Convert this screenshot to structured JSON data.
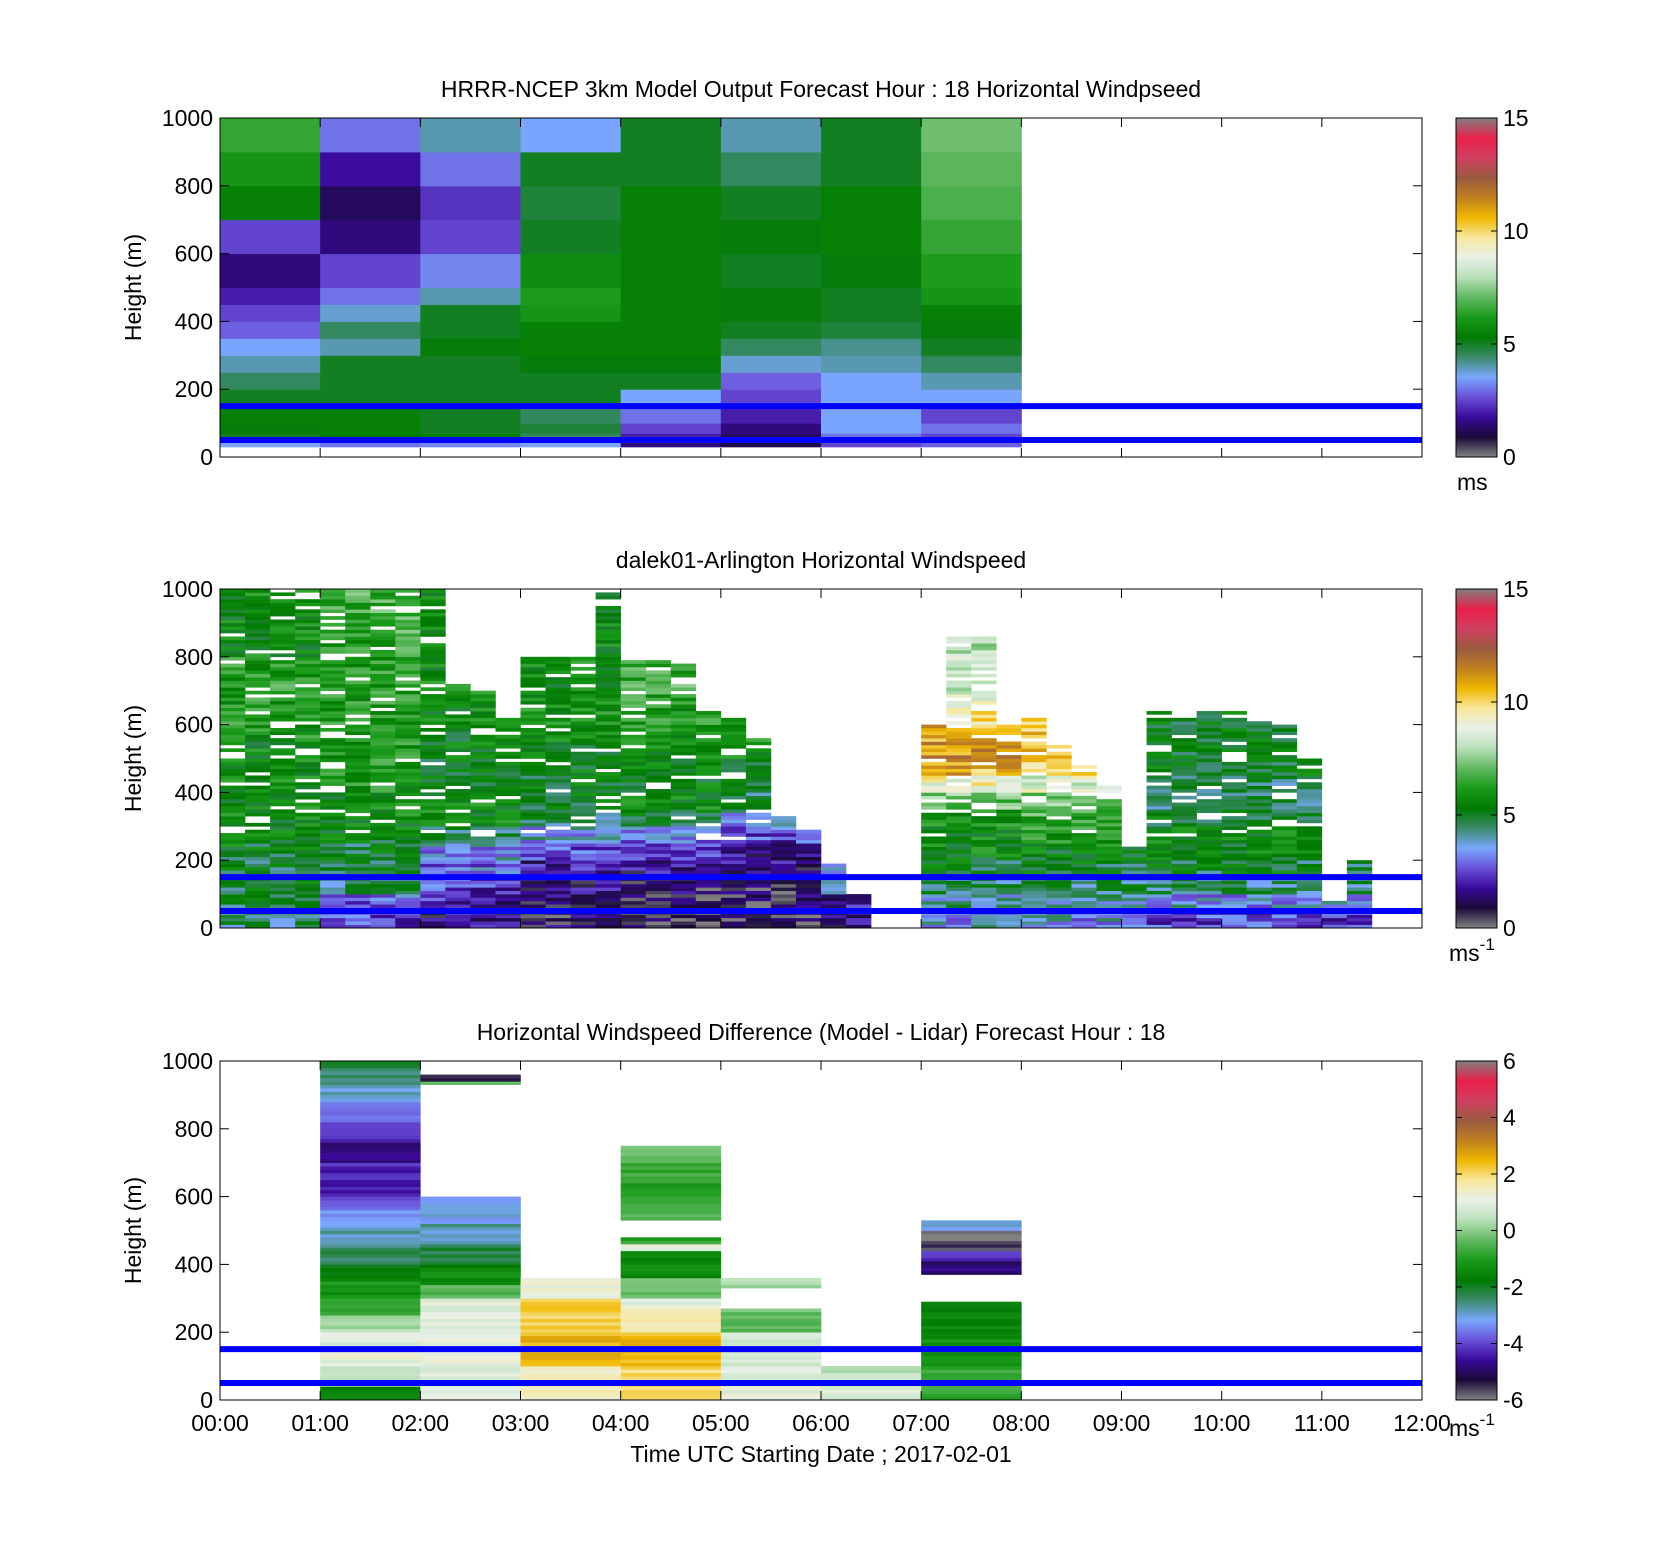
{
  "figure": {
    "xlabel": "Time UTC  Starting Date ; 2017-02-01",
    "x_tick_labels": [
      "00:00",
      "01:00",
      "02:00",
      "03:00",
      "04:00",
      "05:00",
      "06:00",
      "07:00",
      "08:00",
      "09:00",
      "10:00",
      "11:00",
      "12:00"
    ],
    "reference_lines_m": [
      50,
      150
    ],
    "reference_line_color": "#0000ff"
  },
  "colors": {
    "colormap": [
      "#808080",
      "#1a0a3a",
      "#3a0a9a",
      "#6a50d8",
      "#7aa8ff",
      "#3a8a6a",
      "#007a00",
      "#1a9a1a",
      "#60b860",
      "#b8e0b8",
      "#e8f0e8",
      "#f8e8a0",
      "#f0b800",
      "#c08020",
      "#9a5a40",
      "#d04060",
      "#e8204a",
      "#808080"
    ]
  },
  "chart_data": [
    {
      "type": "heatmap",
      "title": "HRRR-NCEP 3km Model Output   Forecast Hour : 18 Horizontal Windpseed",
      "ylabel": "Height (m)",
      "ylim": [
        0,
        1000
      ],
      "yticks": [
        "0",
        "200",
        "400",
        "600",
        "800",
        "1000"
      ],
      "xlim_hours": [
        0,
        12
      ],
      "colorbar": {
        "ticks": [
          "0",
          "5",
          "10",
          "15"
        ],
        "range": [
          0,
          15
        ],
        "unit": "ms",
        "unit_sup": ""
      },
      "columns_hours": [
        0,
        1,
        2,
        3,
        4,
        5,
        6,
        7
      ],
      "column_width_hours": 1,
      "rows_m": [
        [
          30,
          50
        ],
        [
          50,
          70
        ],
        [
          70,
          100
        ],
        [
          100,
          150
        ],
        [
          150,
          200
        ],
        [
          200,
          250
        ],
        [
          250,
          300
        ],
        [
          300,
          350
        ],
        [
          350,
          400
        ],
        [
          400,
          450
        ],
        [
          450,
          500
        ],
        [
          500,
          600
        ],
        [
          600,
          700
        ],
        [
          700,
          800
        ],
        [
          800,
          900
        ],
        [
          900,
          1000
        ]
      ],
      "values": [
        [
          3.5,
          3.0,
          3.2,
          3.5,
          1.5,
          1.0,
          2.5,
          2.8
        ],
        [
          5.0,
          5.2,
          5.5,
          4.5,
          2.0,
          1.2,
          3.0,
          2.5
        ],
        [
          5.2,
          5.5,
          5.0,
          4.8,
          2.5,
          1.5,
          3.5,
          3.0
        ],
        [
          5.5,
          5.5,
          5.0,
          4.5,
          3.0,
          2.0,
          3.5,
          2.5
        ],
        [
          5.0,
          5.0,
          5.0,
          5.0,
          3.5,
          2.5,
          3.5,
          3.5
        ],
        [
          4.5,
          5.0,
          5.0,
          5.0,
          5.0,
          2.8,
          3.5,
          4.0
        ],
        [
          4.0,
          5.0,
          5.0,
          5.2,
          5.2,
          3.8,
          4.0,
          4.5
        ],
        [
          3.5,
          4.0,
          5.2,
          5.5,
          5.5,
          4.5,
          4.2,
          5.0
        ],
        [
          2.8,
          4.5,
          5.0,
          5.5,
          5.5,
          5.0,
          4.8,
          5.2
        ],
        [
          2.5,
          3.8,
          5.0,
          6.0,
          5.5,
          5.2,
          5.0,
          5.5
        ],
        [
          2.0,
          3.0,
          4.0,
          6.2,
          5.5,
          5.2,
          5.0,
          6.0
        ],
        [
          1.5,
          2.5,
          3.2,
          5.8,
          5.5,
          5.0,
          5.2,
          6.2
        ],
        [
          2.5,
          1.5,
          2.5,
          5.0,
          5.5,
          5.2,
          5.5,
          6.5
        ],
        [
          5.5,
          1.2,
          2.3,
          4.8,
          5.5,
          5.0,
          5.5,
          6.8
        ],
        [
          6.0,
          1.8,
          3.0,
          5.0,
          5.0,
          4.5,
          5.0,
          7.0
        ],
        [
          6.5,
          3.0,
          4.0,
          3.5,
          5.0,
          4.0,
          5.0,
          7.2
        ]
      ]
    },
    {
      "type": "heatmap",
      "title": "dalek01-Arlington  Horizontal Windspeed",
      "ylabel": "Height (m)",
      "ylim": [
        0,
        1000
      ],
      "yticks": [
        "0",
        "200",
        "400",
        "600",
        "800",
        "1000"
      ],
      "xlim_hours": [
        0,
        12
      ],
      "colorbar": {
        "ticks": [
          "0",
          "5",
          "10",
          "15"
        ],
        "range": [
          0,
          15
        ],
        "unit": "ms",
        "unit_sup": "-1"
      },
      "bin_width_hours": 0.25,
      "bin_starts_hours": [
        0.0,
        0.25,
        0.5,
        0.75,
        1.0,
        1.25,
        1.5,
        1.75,
        2.0,
        2.25,
        2.5,
        2.75,
        3.0,
        3.25,
        3.5,
        3.75,
        4.0,
        4.25,
        4.5,
        4.75,
        5.0,
        5.25,
        5.5,
        5.75,
        6.0,
        6.25,
        6.5,
        6.75,
        7.0,
        7.25,
        7.5,
        7.75,
        8.0,
        8.25,
        8.5,
        8.75,
        9.0,
        9.25,
        9.5,
        9.75,
        10.0,
        10.25,
        10.5,
        10.75,
        11.0,
        11.25
      ],
      "max_height_m": [
        1000,
        1000,
        1000,
        1000,
        1000,
        1000,
        1000,
        1000,
        1000,
        720,
        700,
        620,
        800,
        800,
        800,
        1000,
        800,
        800,
        780,
        640,
        620,
        560,
        330,
        300,
        190,
        100,
        0,
        0,
        600,
        860,
        860,
        600,
        620,
        540,
        480,
        420,
        240,
        640,
        620,
        640,
        640,
        620,
        600,
        500,
        80,
        200
      ],
      "profile_m": [
        0,
        50,
        100,
        150,
        200,
        250,
        300,
        350,
        400,
        450,
        500,
        550,
        600,
        650,
        700,
        750,
        800,
        850,
        900,
        950,
        1000
      ],
      "profile_values": [
        [
          4.5,
          4.8,
          5.0,
          5.0,
          5.2,
          5.2,
          5.5,
          5.5,
          5.5,
          5.5,
          5.5,
          5.8,
          6.0,
          6.0,
          6.2,
          6.0,
          5.5,
          5.5,
          5.5,
          5.5,
          5.5
        ],
        [
          2.5,
          3.0,
          4.5,
          5.0,
          5.0,
          5.2,
          5.5,
          5.5,
          5.8,
          6.0,
          6.0,
          6.0,
          6.2,
          6.0,
          6.0,
          6.0,
          6.2,
          6.5,
          6.5,
          6.5,
          6.5
        ],
        [
          1.5,
          2.0,
          2.5,
          3.0,
          3.5,
          4.5,
          5.5,
          5.5,
          5.0,
          5.0,
          5.2,
          5.2,
          5.5,
          5.5,
          5.5,
          5.5,
          5.5,
          5.5,
          5.5,
          5.5,
          5.5
        ],
        [
          1.0,
          1.2,
          1.5,
          2.0,
          2.5,
          3.5,
          4.5,
          5.0,
          5.0,
          5.2,
          5.2,
          5.5,
          5.8,
          5.5,
          5.5,
          5.5,
          5.5,
          5.5,
          5.5,
          5.5,
          5.5
        ],
        [
          0.6,
          0.8,
          1.0,
          1.5,
          2.0,
          3.0,
          5.0,
          5.5,
          5.2,
          5.2,
          5.5,
          5.8,
          6.0,
          6.2,
          6.5,
          6.5,
          6.5,
          6.5,
          6.5,
          6.5,
          6.5
        ],
        [
          0.6,
          0.8,
          1.0,
          1.5,
          1.8,
          2.5,
          3.5,
          4.5,
          5.0,
          5.2,
          5.5,
          5.8,
          6.0,
          6.0,
          6.0,
          6.0,
          6.0,
          6.0,
          6.0,
          6.0,
          6.0
        ],
        [
          1.5,
          2.0,
          3.0,
          3.5,
          4.5,
          5.0,
          5.5,
          5.5,
          5.5,
          9.0,
          10.5,
          9.5,
          9.0,
          9.0,
          8.5,
          8.0,
          8.0,
          8.0,
          8.0,
          8.0,
          8.0
        ],
        [
          3.5,
          4.0,
          4.5,
          5.0,
          5.5,
          5.5,
          6.0,
          7.0,
          9.0,
          10.5,
          11.0,
          10.5,
          9.5,
          8.5,
          8.0,
          8.0,
          8.0,
          8.0,
          8.0,
          8.0,
          8.0
        ],
        [
          3.5,
          4.0,
          4.5,
          5.0,
          5.5,
          6.0,
          6.5,
          7.0,
          8.5,
          10.0,
          10.5,
          10.0,
          9.5,
          9.0,
          8.5,
          8.0,
          8.0,
          8.0,
          8.0,
          8.0,
          8.0
        ],
        [
          2.5,
          3.5,
          4.5,
          5.0,
          5.5,
          5.5,
          5.0,
          4.5,
          4.5,
          5.0,
          5.0,
          5.0,
          5.0,
          5.0,
          5.0,
          5.0,
          5.0,
          5.0,
          5.0,
          5.0,
          5.0
        ]
      ]
    },
    {
      "type": "heatmap",
      "title": "Horizontal Windspeed Difference (Model - Lidar) Forecast Hour : 18",
      "ylabel": "Height (m)",
      "ylim": [
        0,
        1000
      ],
      "yticks": [
        "0",
        "200",
        "400",
        "600",
        "800",
        "1000"
      ],
      "xlim_hours": [
        0,
        12
      ],
      "colorbar": {
        "ticks": [
          "-6",
          "-4",
          "-2",
          "0",
          "2",
          "4",
          "6"
        ],
        "range": [
          -6,
          6
        ],
        "unit": "ms",
        "unit_sup": "-1"
      },
      "columns": [
        {
          "start_hour": 1,
          "segments": [
            [
              0,
              40,
              -1.5
            ],
            [
              40,
              100,
              0.5
            ],
            [
              100,
              200,
              1.0
            ],
            [
              200,
              250,
              0.3
            ],
            [
              250,
              300,
              -0.7
            ],
            [
              300,
              350,
              -1.2
            ],
            [
              350,
              400,
              -1.8
            ],
            [
              400,
              450,
              -2.3
            ],
            [
              450,
              500,
              -2.8
            ],
            [
              500,
              560,
              -3.2
            ],
            [
              560,
              600,
              -3.8
            ],
            [
              600,
              700,
              -4.3
            ],
            [
              700,
              760,
              -4.8
            ],
            [
              760,
              820,
              -4.2
            ],
            [
              820,
              880,
              -3.5
            ],
            [
              880,
              930,
              -3.0
            ],
            [
              930,
              970,
              -2.5
            ],
            [
              970,
              1000,
              -2.2
            ]
          ]
        },
        {
          "start_hour": 2,
          "segments": [
            [
              0,
              300,
              1.0
            ],
            [
              300,
              340,
              -0.5
            ],
            [
              340,
              400,
              -1.5
            ],
            [
              400,
              460,
              -2.2
            ],
            [
              460,
              520,
              -2.8
            ],
            [
              520,
              600,
              -3.2
            ],
            [
              930,
              940,
              0.0
            ],
            [
              940,
              960,
              -5.5
            ]
          ]
        },
        {
          "start_hour": 3,
          "segments": [
            [
              0,
              100,
              1.5
            ],
            [
              100,
              200,
              2.5
            ],
            [
              200,
              300,
              2.2
            ],
            [
              300,
              360,
              1.2
            ]
          ]
        },
        {
          "start_hour": 4,
          "segments": [
            [
              0,
              100,
              2.0
            ],
            [
              100,
              200,
              2.5
            ],
            [
              200,
              280,
              1.5
            ],
            [
              280,
              300,
              1.0
            ],
            [
              300,
              360,
              -0.3
            ],
            [
              360,
              440,
              -1.5
            ],
            [
              440,
              460,
              1.0
            ],
            [
              460,
              480,
              -0.8
            ],
            [
              530,
              600,
              -0.5
            ],
            [
              600,
              660,
              -1.0
            ],
            [
              660,
              700,
              -0.7
            ],
            [
              700,
              750,
              -0.4
            ]
          ]
        },
        {
          "start_hour": 5,
          "segments": [
            [
              0,
              100,
              1.0
            ],
            [
              100,
              200,
              0.6
            ],
            [
              200,
              270,
              -0.3
            ],
            [
              330,
              360,
              0.3
            ]
          ]
        },
        {
          "start_hour": 6,
          "segments": [
            [
              0,
              50,
              1.0
            ],
            [
              50,
              100,
              0.5
            ]
          ]
        },
        {
          "start_hour": 7,
          "segments": [
            [
              0,
              100,
              -0.8
            ],
            [
              100,
              200,
              -1.3
            ],
            [
              200,
              290,
              -1.6
            ],
            [
              370,
              410,
              -4.8
            ],
            [
              410,
              440,
              -4.2
            ],
            [
              440,
              470,
              -5.5
            ],
            [
              470,
              500,
              -6.0
            ],
            [
              500,
              530,
              -3.2
            ]
          ]
        }
      ]
    }
  ]
}
